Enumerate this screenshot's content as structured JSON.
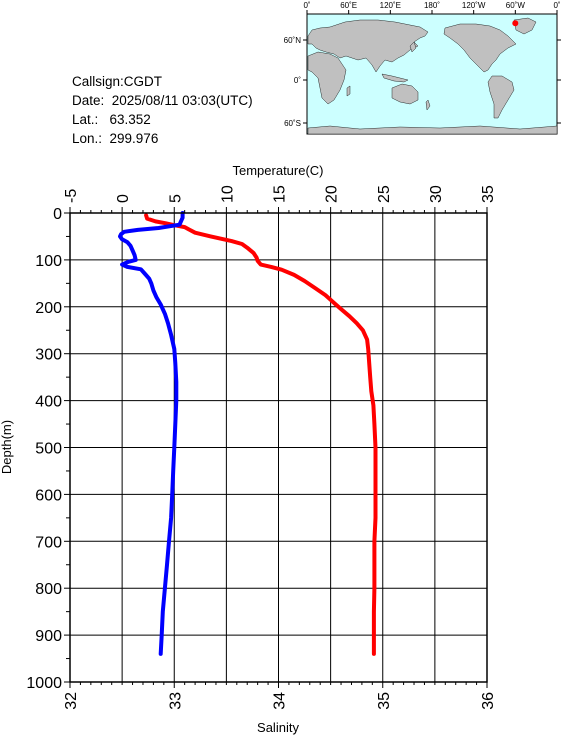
{
  "station": {
    "callsign": "Callsign:CGDT",
    "date": "Date:  2025/08/11 03:03(UTC)",
    "lat": "Lat.:   63.352",
    "lon": "Lon.:  299.976"
  },
  "map": {
    "lon_labels": [
      "0˚",
      "60˚E",
      "120˚E",
      "180˚",
      "120˚W",
      "60˚W",
      "0˚"
    ],
    "lat_labels": [
      "60˚N",
      "0˚",
      "60˚S"
    ],
    "ocean_color": "#ccffff",
    "land_color": "#c0c0c0",
    "marker_color": "#ff0000",
    "marker": {
      "lat": 63.352,
      "lon": 299.976
    }
  },
  "chart_data": {
    "type": "line",
    "temperature_axis": {
      "title": "Temperature(C)",
      "range": [
        -5,
        35
      ],
      "ticks": [
        "-5",
        "0",
        "5",
        "10",
        "15",
        "20",
        "25",
        "30",
        "35"
      ]
    },
    "salinity_axis": {
      "title": "Salinity",
      "range": [
        32,
        36
      ],
      "ticks": [
        "32",
        "33",
        "34",
        "35",
        "36"
      ]
    },
    "depth_axis": {
      "title": "Depth(m)",
      "range": [
        0,
        1000
      ],
      "ticks": [
        "0",
        "100",
        "200",
        "300",
        "400",
        "500",
        "600",
        "700",
        "800",
        "900",
        "1000"
      ]
    },
    "grid": true,
    "series": [
      {
        "color": "#ff0000",
        "axis": "temperature",
        "points": [
          [
            2.3,
            5
          ],
          [
            2.4,
            12
          ],
          [
            3.2,
            18
          ],
          [
            4.2,
            22
          ],
          [
            5.0,
            26
          ],
          [
            6.0,
            30
          ],
          [
            6.4,
            35
          ],
          [
            7.0,
            42
          ],
          [
            8.5,
            50
          ],
          [
            10.5,
            60
          ],
          [
            11.5,
            66
          ],
          [
            12.0,
            74
          ],
          [
            12.6,
            85
          ],
          [
            12.9,
            95
          ],
          [
            13.0,
            102
          ],
          [
            13.3,
            110
          ],
          [
            14.3,
            115
          ],
          [
            15.3,
            121
          ],
          [
            16.5,
            132
          ],
          [
            17.5,
            145
          ],
          [
            18.5,
            160
          ],
          [
            19.5,
            175
          ],
          [
            20.0,
            185
          ],
          [
            20.5,
            195
          ],
          [
            21.0,
            205
          ],
          [
            21.8,
            220
          ],
          [
            22.5,
            235
          ],
          [
            23.1,
            250
          ],
          [
            23.5,
            270
          ],
          [
            23.6,
            290
          ],
          [
            23.7,
            320
          ],
          [
            23.8,
            350
          ],
          [
            23.9,
            380
          ],
          [
            24.1,
            410
          ],
          [
            24.2,
            450
          ],
          [
            24.3,
            500
          ],
          [
            24.3,
            550
          ],
          [
            24.3,
            600
          ],
          [
            24.3,
            650
          ],
          [
            24.2,
            700
          ],
          [
            24.2,
            750
          ],
          [
            24.2,
            800
          ],
          [
            24.15,
            850
          ],
          [
            24.15,
            900
          ],
          [
            24.15,
            940
          ]
        ]
      },
      {
        "color": "#0000ff",
        "axis": "salinity",
        "points": [
          [
            33.08,
            0
          ],
          [
            33.08,
            10
          ],
          [
            33.05,
            25
          ],
          [
            32.85,
            32
          ],
          [
            32.65,
            36
          ],
          [
            32.52,
            40
          ],
          [
            32.49,
            45
          ],
          [
            32.48,
            50
          ],
          [
            32.5,
            56
          ],
          [
            32.55,
            62
          ],
          [
            32.58,
            70
          ],
          [
            32.6,
            80
          ],
          [
            32.62,
            90
          ],
          [
            32.63,
            100
          ],
          [
            32.56,
            104
          ],
          [
            32.5,
            110
          ],
          [
            32.55,
            115
          ],
          [
            32.68,
            120
          ],
          [
            32.72,
            130
          ],
          [
            32.76,
            140
          ],
          [
            32.78,
            150
          ],
          [
            32.8,
            165
          ],
          [
            32.83,
            180
          ],
          [
            32.87,
            195
          ],
          [
            32.91,
            215
          ],
          [
            32.94,
            235
          ],
          [
            32.97,
            260
          ],
          [
            33.0,
            290
          ],
          [
            33.01,
            320
          ],
          [
            33.02,
            360
          ],
          [
            33.02,
            400
          ],
          [
            33.01,
            450
          ],
          [
            33.0,
            500
          ],
          [
            32.99,
            550
          ],
          [
            32.98,
            600
          ],
          [
            32.97,
            650
          ],
          [
            32.95,
            700
          ],
          [
            32.93,
            750
          ],
          [
            32.91,
            800
          ],
          [
            32.89,
            850
          ],
          [
            32.88,
            900
          ],
          [
            32.87,
            940
          ]
        ]
      }
    ]
  }
}
